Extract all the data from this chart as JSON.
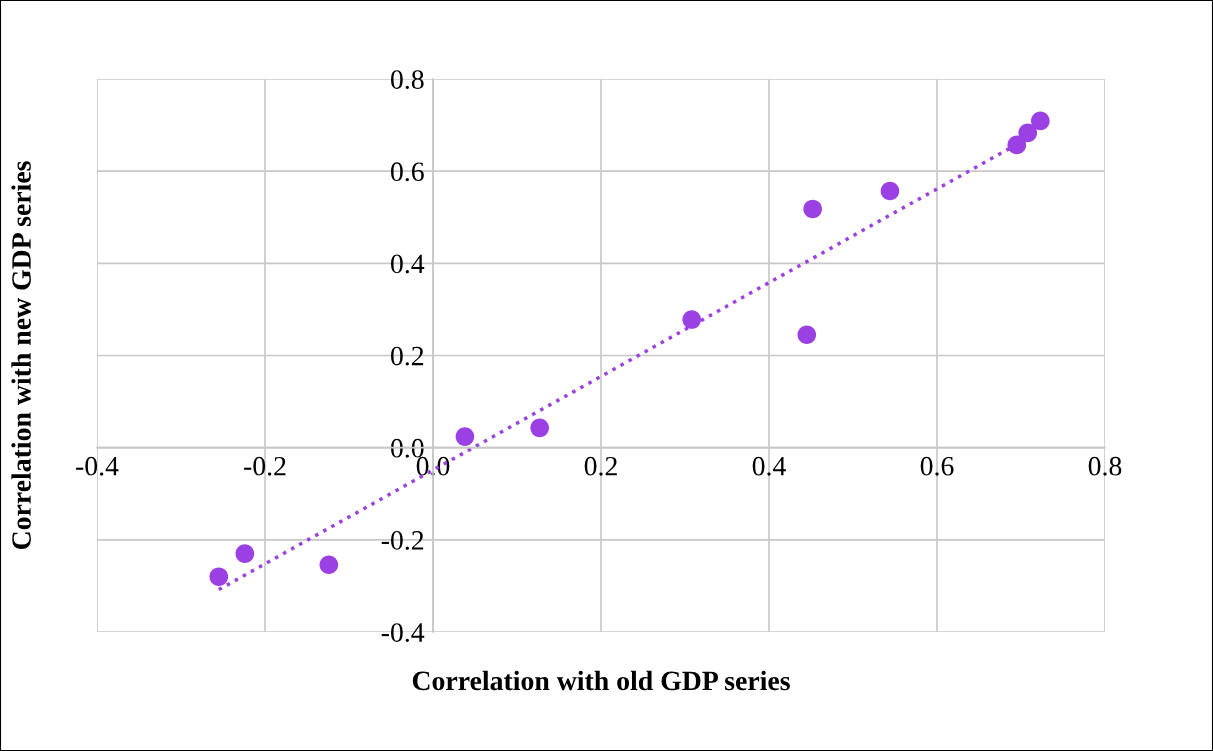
{
  "chart_data": {
    "type": "scatter",
    "xlabel": "Correlation with old GDP series",
    "ylabel": "Correlation with new GDP series",
    "series": [
      {
        "color": "#9b40e2",
        "marker": "circle",
        "x": [
          -0.255,
          -0.224,
          -0.124,
          0.038,
          0.127,
          0.308,
          0.445,
          0.452,
          0.544,
          0.695,
          0.708,
          0.723
        ],
        "values": [
          -0.28,
          -0.23,
          -0.254,
          0.024,
          0.043,
          0.278,
          0.245,
          0.518,
          0.557,
          0.657,
          0.683,
          0.709
        ]
      },
      {
        "type": "line",
        "color": "#9b40e2",
        "line_style": "dotted",
        "marker": "none",
        "x": [
          -0.255,
          0.695
        ],
        "values": [
          -0.308,
          0.658
        ]
      }
    ],
    "xlim": [
      -0.4,
      0.8
    ],
    "xticks": [
      {
        "value": -0.4,
        "label": "-0.4"
      },
      {
        "value": -0.2,
        "label": "-0.2"
      },
      {
        "value": 0,
        "label": "0.0"
      },
      {
        "value": 0.2,
        "label": "0.2"
      },
      {
        "value": 0.4,
        "label": "0.4"
      },
      {
        "value": 0.6,
        "label": "0.6"
      },
      {
        "value": 0.8,
        "label": "0.8"
      }
    ],
    "ylim": [
      -0.4,
      0.8
    ],
    "yticks": [
      {
        "value": -0.4,
        "label": "-0.4"
      },
      {
        "value": -0.2,
        "label": "-0.2"
      },
      {
        "value": 0,
        "label": "0.0"
      },
      {
        "value": 0.2,
        "label": "0.2"
      },
      {
        "value": 0.4,
        "label": "0.4"
      },
      {
        "value": 0.6,
        "label": "0.6"
      },
      {
        "value": 0.8,
        "label": "0.8"
      }
    ],
    "grid": true,
    "legend": false
  }
}
